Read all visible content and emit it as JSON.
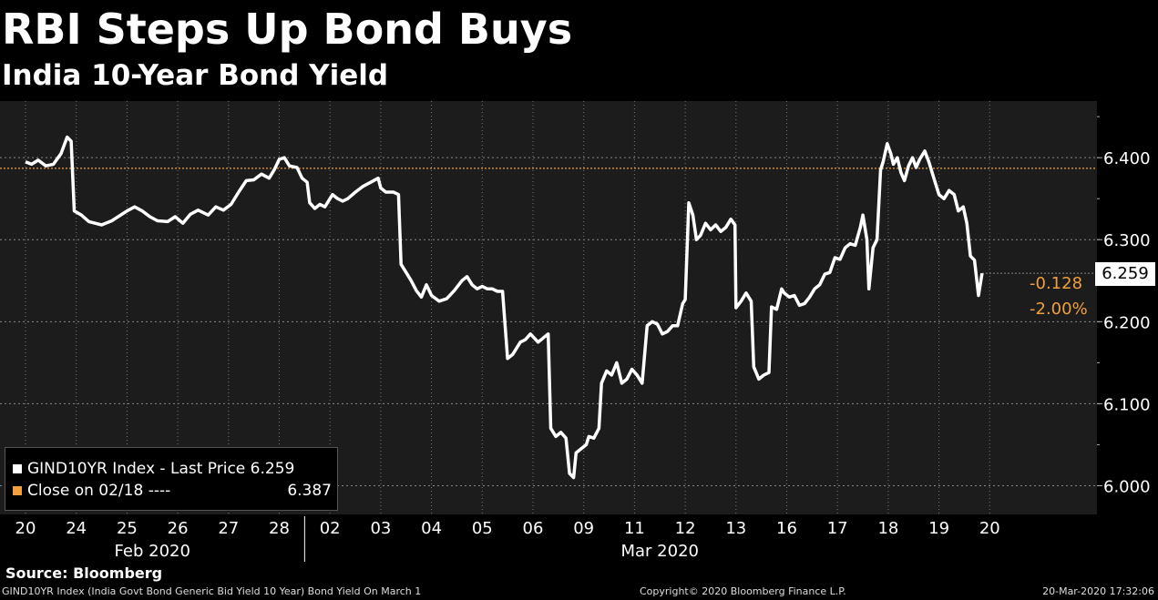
{
  "header": {
    "title": "RBI Steps Up Bond Buys",
    "subtitle": "India 10-Year Bond Yield"
  },
  "legend": {
    "last_price_label": "GIND10YR Index - Last Price",
    "last_price_value": "6.259",
    "close_label": "Close on 02/18 ----",
    "close_value": "6.387"
  },
  "annotations": {
    "last_value": "6.259",
    "change": "-0.128",
    "change_pct": "-2.00%"
  },
  "source": "Source: Bloomberg",
  "footer": {
    "description": "GIND10YR Index (India Govt Bond Generic Bid Yield 10 Year) Bond Yield On March 1",
    "copyright": "Copyright© 2020 Bloomberg Finance L.P.",
    "timestamp": "20-Mar-2020 17:32:06"
  },
  "colors": {
    "line": "#ffffff",
    "reference": "#f0a040",
    "plot_background": "#1c1c1c"
  },
  "chart_data": {
    "type": "line",
    "title": "RBI Steps Up Bond Buys",
    "subtitle": "India 10-Year Bond Yield",
    "ylim": [
      5.965,
      6.469
    ],
    "yticks": [
      6.0,
      6.1,
      6.2,
      6.3,
      6.4
    ],
    "ytick_labels": [
      "6.000",
      "6.100",
      "6.200",
      "6.300",
      "6.400"
    ],
    "x_categories": [
      "20",
      "24",
      "25",
      "26",
      "27",
      "28",
      "02",
      "03",
      "04",
      "05",
      "06",
      "09",
      "11",
      "12",
      "13",
      "16",
      "17",
      "18",
      "19",
      "20"
    ],
    "month_labels": [
      {
        "label": "Feb 2020",
        "start": 0,
        "end": 5
      },
      {
        "label": "Mar 2020",
        "start": 6,
        "end": 19
      }
    ],
    "reference_line": {
      "label": "Close on 02/18",
      "value": 6.387
    },
    "grid": true,
    "legend_position": "bottom-left",
    "series": [
      {
        "name": "GIND10YR Index - Last Price",
        "last": 6.259,
        "points": [
          [
            0.0,
            6.395
          ],
          [
            0.12,
            6.392
          ],
          [
            0.25,
            6.397
          ],
          [
            0.4,
            6.39
          ],
          [
            0.55,
            6.392
          ],
          [
            0.7,
            6.405
          ],
          [
            0.82,
            6.425
          ],
          [
            0.9,
            6.42
          ],
          [
            0.96,
            6.335
          ],
          [
            1.1,
            6.33
          ],
          [
            1.25,
            6.322
          ],
          [
            1.5,
            6.318
          ],
          [
            1.7,
            6.323
          ],
          [
            1.85,
            6.329
          ],
          [
            2.0,
            6.335
          ],
          [
            2.15,
            6.34
          ],
          [
            2.3,
            6.335
          ],
          [
            2.45,
            6.328
          ],
          [
            2.6,
            6.323
          ],
          [
            2.8,
            6.322
          ],
          [
            2.95,
            6.328
          ],
          [
            3.1,
            6.32
          ],
          [
            3.25,
            6.331
          ],
          [
            3.4,
            6.336
          ],
          [
            3.6,
            6.33
          ],
          [
            3.75,
            6.34
          ],
          [
            3.9,
            6.336
          ],
          [
            4.05,
            6.343
          ],
          [
            4.2,
            6.358
          ],
          [
            4.35,
            6.372
          ],
          [
            4.5,
            6.373
          ],
          [
            4.65,
            6.38
          ],
          [
            4.8,
            6.375
          ],
          [
            4.9,
            6.385
          ],
          [
            5.0,
            6.398
          ],
          [
            5.1,
            6.4
          ],
          [
            5.2,
            6.39
          ],
          [
            5.35,
            6.388
          ],
          [
            5.45,
            6.375
          ],
          [
            5.55,
            6.37
          ],
          [
            5.6,
            6.345
          ],
          [
            5.7,
            6.338
          ],
          [
            5.8,
            6.343
          ],
          [
            5.9,
            6.34
          ],
          [
            6.05,
            6.355
          ],
          [
            6.15,
            6.35
          ],
          [
            6.25,
            6.347
          ],
          [
            6.35,
            6.35
          ],
          [
            6.5,
            6.358
          ],
          [
            6.65,
            6.365
          ],
          [
            6.8,
            6.37
          ],
          [
            6.95,
            6.375
          ],
          [
            7.0,
            6.363
          ],
          [
            7.1,
            6.358
          ],
          [
            7.25,
            6.358
          ],
          [
            7.35,
            6.355
          ],
          [
            7.4,
            6.27
          ],
          [
            7.5,
            6.26
          ],
          [
            7.6,
            6.25
          ],
          [
            7.7,
            6.238
          ],
          [
            7.8,
            6.23
          ],
          [
            7.9,
            6.245
          ],
          [
            8.0,
            6.232
          ],
          [
            8.15,
            6.225
          ],
          [
            8.3,
            6.228
          ],
          [
            8.45,
            6.238
          ],
          [
            8.6,
            6.25
          ],
          [
            8.7,
            6.255
          ],
          [
            8.8,
            6.245
          ],
          [
            8.9,
            6.24
          ],
          [
            9.0,
            6.243
          ],
          [
            9.1,
            6.24
          ],
          [
            9.2,
            6.24
          ],
          [
            9.3,
            6.237
          ],
          [
            9.4,
            6.237
          ],
          [
            9.5,
            6.155
          ],
          [
            9.6,
            6.16
          ],
          [
            9.75,
            6.175
          ],
          [
            9.85,
            6.178
          ],
          [
            9.95,
            6.185
          ],
          [
            10.1,
            6.175
          ],
          [
            10.2,
            6.18
          ],
          [
            10.3,
            6.185
          ],
          [
            10.35,
            6.07
          ],
          [
            10.45,
            6.06
          ],
          [
            10.55,
            6.065
          ],
          [
            10.65,
            6.058
          ],
          [
            10.72,
            6.015
          ],
          [
            10.8,
            6.01
          ],
          [
            10.85,
            6.04
          ],
          [
            10.95,
            6.045
          ],
          [
            11.05,
            6.05
          ],
          [
            11.1,
            6.06
          ],
          [
            11.2,
            6.058
          ],
          [
            11.3,
            6.07
          ],
          [
            11.35,
            6.125
          ],
          [
            11.45,
            6.14
          ],
          [
            11.55,
            6.135
          ],
          [
            11.65,
            6.15
          ],
          [
            11.75,
            6.125
          ],
          [
            11.85,
            6.13
          ],
          [
            11.95,
            6.142
          ],
          [
            12.05,
            6.135
          ],
          [
            12.15,
            6.125
          ],
          [
            12.25,
            6.195
          ],
          [
            12.35,
            6.2
          ],
          [
            12.45,
            6.197
          ],
          [
            12.55,
            6.185
          ],
          [
            12.65,
            6.188
          ],
          [
            12.75,
            6.195
          ],
          [
            12.85,
            6.195
          ],
          [
            12.95,
            6.222
          ],
          [
            13.0,
            6.227
          ],
          [
            13.07,
            6.345
          ],
          [
            13.15,
            6.33
          ],
          [
            13.22,
            6.3
          ],
          [
            13.3,
            6.305
          ],
          [
            13.4,
            6.32
          ],
          [
            13.5,
            6.312
          ],
          [
            13.6,
            6.318
          ],
          [
            13.7,
            6.31
          ],
          [
            13.8,
            6.315
          ],
          [
            13.9,
            6.325
          ],
          [
            13.98,
            6.318
          ],
          [
            14.0,
            6.217
          ],
          [
            14.1,
            6.225
          ],
          [
            14.2,
            6.235
          ],
          [
            14.3,
            6.225
          ],
          [
            14.35,
            6.145
          ],
          [
            14.45,
            6.13
          ],
          [
            14.55,
            6.135
          ],
          [
            14.65,
            6.138
          ],
          [
            14.7,
            6.218
          ],
          [
            14.8,
            6.215
          ],
          [
            14.9,
            6.24
          ],
          [
            14.95,
            6.235
          ],
          [
            15.05,
            6.23
          ],
          [
            15.15,
            6.232
          ],
          [
            15.25,
            6.22
          ],
          [
            15.35,
            6.222
          ],
          [
            15.45,
            6.23
          ],
          [
            15.55,
            6.24
          ],
          [
            15.65,
            6.245
          ],
          [
            15.75,
            6.258
          ],
          [
            15.85,
            6.26
          ],
          [
            15.95,
            6.278
          ],
          [
            16.05,
            6.276
          ],
          [
            16.15,
            6.29
          ],
          [
            16.25,
            6.295
          ],
          [
            16.35,
            6.293
          ],
          [
            16.45,
            6.315
          ],
          [
            16.5,
            6.33
          ],
          [
            16.58,
            6.3
          ],
          [
            16.62,
            6.24
          ],
          [
            16.7,
            6.29
          ],
          [
            16.78,
            6.3
          ],
          [
            16.85,
            6.385
          ],
          [
            16.9,
            6.395
          ],
          [
            16.98,
            6.417
          ],
          [
            17.05,
            6.405
          ],
          [
            17.1,
            6.392
          ],
          [
            17.18,
            6.4
          ],
          [
            17.25,
            6.382
          ],
          [
            17.32,
            6.372
          ],
          [
            17.4,
            6.39
          ],
          [
            17.48,
            6.4
          ],
          [
            17.55,
            6.388
          ],
          [
            17.62,
            6.398
          ],
          [
            17.72,
            6.408
          ],
          [
            17.8,
            6.395
          ],
          [
            17.9,
            6.375
          ],
          [
            18.0,
            6.355
          ],
          [
            18.1,
            6.35
          ],
          [
            18.2,
            6.36
          ],
          [
            18.3,
            6.355
          ],
          [
            18.38,
            6.335
          ],
          [
            18.48,
            6.34
          ],
          [
            18.55,
            6.32
          ],
          [
            18.62,
            6.28
          ],
          [
            18.7,
            6.275
          ],
          [
            18.78,
            6.232
          ],
          [
            18.85,
            6.259
          ]
        ]
      }
    ]
  }
}
